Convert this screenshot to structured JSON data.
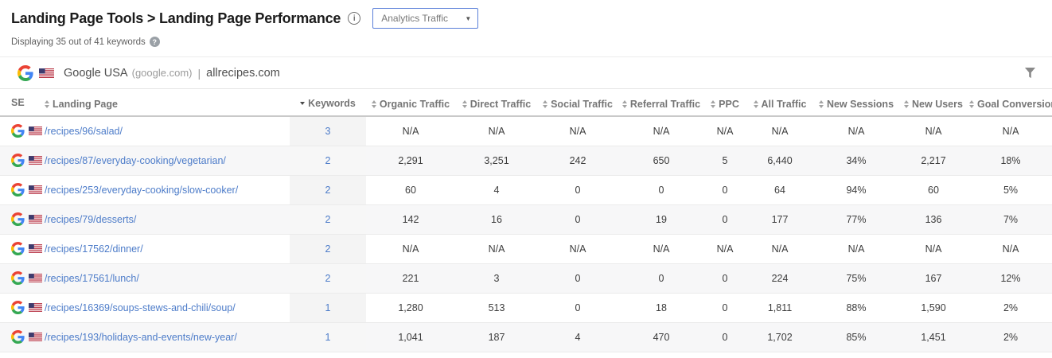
{
  "header": {
    "title": "Landing Page Tools > Landing Page Performance",
    "subtitle": "Displaying 35 out of 41 keywords",
    "dropdown_value": "Analytics Traffic"
  },
  "icons": {
    "info_glyph": "i",
    "help_glyph": "?",
    "dropdown_arrow": "▼"
  },
  "site_bar": {
    "search_engine": "Google USA",
    "search_engine_domain": "(google.com)",
    "separator": "|",
    "website": "allrecipes.com"
  },
  "colors": {
    "accent_blue": "#4d7cc9",
    "dropdown_border": "#5b80d9",
    "header_text": "#757575",
    "body_text": "#3c3c3c"
  },
  "table": {
    "columns": [
      {
        "key": "se",
        "label": "SE",
        "sort": null,
        "align": "left"
      },
      {
        "key": "landing_page",
        "label": "Landing Page",
        "sort": "both",
        "align": "left"
      },
      {
        "key": "keywords",
        "label": "Keywords",
        "sort": "desc",
        "align": "center"
      },
      {
        "key": "organic_traffic",
        "label": "Organic Traffic",
        "sort": "both",
        "align": "center"
      },
      {
        "key": "direct_traffic",
        "label": "Direct Traffic",
        "sort": "both",
        "align": "center"
      },
      {
        "key": "social_traffic",
        "label": "Social Traffic",
        "sort": "both",
        "align": "center"
      },
      {
        "key": "referral_traffic",
        "label": "Referral Traffic",
        "sort": "both",
        "align": "center"
      },
      {
        "key": "ppc",
        "label": "PPC",
        "sort": "both",
        "align": "center"
      },
      {
        "key": "all_traffic",
        "label": "All Traffic",
        "sort": "both",
        "align": "center"
      },
      {
        "key": "new_sessions",
        "label": "New Sessions",
        "sort": "both",
        "align": "center"
      },
      {
        "key": "new_users",
        "label": "New Users",
        "sort": "both",
        "align": "center"
      },
      {
        "key": "goal_conversion",
        "label": "Goal Conversion",
        "sort": "both",
        "align": "center"
      }
    ],
    "rows": [
      {
        "landing_page": "/recipes/96/salad/",
        "keywords": "3",
        "organic_traffic": "N/A",
        "direct_traffic": "N/A",
        "social_traffic": "N/A",
        "referral_traffic": "N/A",
        "ppc": "N/A",
        "all_traffic": "N/A",
        "new_sessions": "N/A",
        "new_users": "N/A",
        "goal_conversion": "N/A"
      },
      {
        "landing_page": "/recipes/87/everyday-cooking/vegetarian/",
        "keywords": "2",
        "organic_traffic": "2,291",
        "direct_traffic": "3,251",
        "social_traffic": "242",
        "referral_traffic": "650",
        "ppc": "5",
        "all_traffic": "6,440",
        "new_sessions": "34%",
        "new_users": "2,217",
        "goal_conversion": "18%"
      },
      {
        "landing_page": "/recipes/253/everyday-cooking/slow-cooker/",
        "keywords": "2",
        "organic_traffic": "60",
        "direct_traffic": "4",
        "social_traffic": "0",
        "referral_traffic": "0",
        "ppc": "0",
        "all_traffic": "64",
        "new_sessions": "94%",
        "new_users": "60",
        "goal_conversion": "5%"
      },
      {
        "landing_page": "/recipes/79/desserts/",
        "keywords": "2",
        "organic_traffic": "142",
        "direct_traffic": "16",
        "social_traffic": "0",
        "referral_traffic": "19",
        "ppc": "0",
        "all_traffic": "177",
        "new_sessions": "77%",
        "new_users": "136",
        "goal_conversion": "7%"
      },
      {
        "landing_page": "/recipes/17562/dinner/",
        "keywords": "2",
        "organic_traffic": "N/A",
        "direct_traffic": "N/A",
        "social_traffic": "N/A",
        "referral_traffic": "N/A",
        "ppc": "N/A",
        "all_traffic": "N/A",
        "new_sessions": "N/A",
        "new_users": "N/A",
        "goal_conversion": "N/A"
      },
      {
        "landing_page": "/recipes/17561/lunch/",
        "keywords": "2",
        "organic_traffic": "221",
        "direct_traffic": "3",
        "social_traffic": "0",
        "referral_traffic": "0",
        "ppc": "0",
        "all_traffic": "224",
        "new_sessions": "75%",
        "new_users": "167",
        "goal_conversion": "12%"
      },
      {
        "landing_page": "/recipes/16369/soups-stews-and-chili/soup/",
        "keywords": "1",
        "organic_traffic": "1,280",
        "direct_traffic": "513",
        "social_traffic": "0",
        "referral_traffic": "18",
        "ppc": "0",
        "all_traffic": "1,811",
        "new_sessions": "88%",
        "new_users": "1,590",
        "goal_conversion": "2%"
      },
      {
        "landing_page": "/recipes/193/holidays-and-events/new-year/",
        "keywords": "1",
        "organic_traffic": "1,041",
        "direct_traffic": "187",
        "social_traffic": "4",
        "referral_traffic": "470",
        "ppc": "0",
        "all_traffic": "1,702",
        "new_sessions": "85%",
        "new_users": "1,451",
        "goal_conversion": "2%"
      }
    ]
  }
}
